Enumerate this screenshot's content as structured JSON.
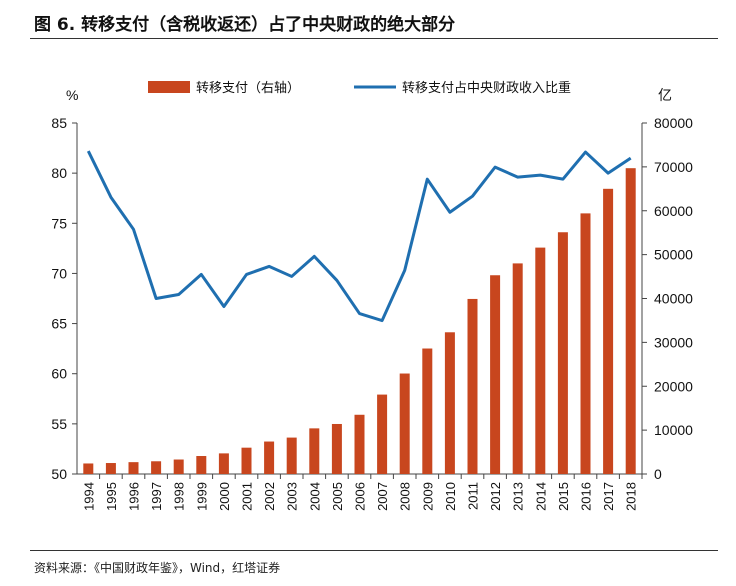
{
  "title": "图 6. 转移支付（含税收返还）占了中央财政的绝大部分",
  "source": "资料来源：《中国财政年鉴》，Wind，红塔证券",
  "chart_data": {
    "type": "bar+line",
    "categories": [
      "1994",
      "1995",
      "1996",
      "1997",
      "1998",
      "1999",
      "2000",
      "2001",
      "2002",
      "2003",
      "2004",
      "2005",
      "2006",
      "2007",
      "2008",
      "2009",
      "2010",
      "2011",
      "2012",
      "2013",
      "2014",
      "2015",
      "2016",
      "2017",
      "2018"
    ],
    "series": [
      {
        "name": "转移支付（右轴）",
        "type": "bar",
        "axis": "right",
        "color": "#C8461E",
        "values": [
          2400,
          2500,
          2700,
          2900,
          3300,
          4100,
          4700,
          6000,
          7400,
          8300,
          10400,
          11400,
          13500,
          18100,
          22900,
          28600,
          32300,
          39900,
          45300,
          48000,
          51600,
          55100,
          59400,
          65000,
          69700
        ]
      },
      {
        "name": "转移支付占中央财政收入比重",
        "type": "line",
        "axis": "left",
        "color": "#1F6FB0",
        "values": [
          82.2,
          77.6,
          74.4,
          67.5,
          67.9,
          69.9,
          66.7,
          69.9,
          70.7,
          69.7,
          71.7,
          69.3,
          66.0,
          65.3,
          70.3,
          79.4,
          76.1,
          77.7,
          80.6,
          79.6,
          79.8,
          79.4,
          82.1,
          80.0,
          81.5
        ]
      }
    ],
    "left_axis": {
      "label": "%",
      "ylim": [
        50,
        85
      ],
      "ticks": [
        "50",
        "55",
        "60",
        "65",
        "70",
        "75",
        "80",
        "85"
      ]
    },
    "right_axis": {
      "label": "亿",
      "ylim": [
        0,
        80000
      ],
      "ticks": [
        "0",
        "10000",
        "20000",
        "30000",
        "40000",
        "50000",
        "60000",
        "70000",
        "80000"
      ]
    },
    "legend_position": "top",
    "grid": false
  }
}
